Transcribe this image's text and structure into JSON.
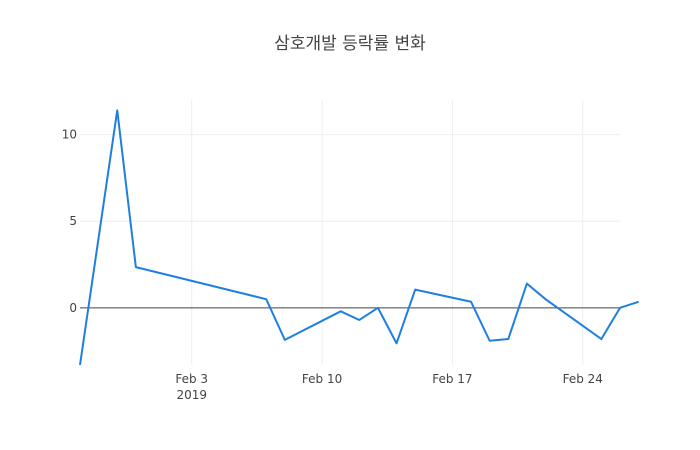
{
  "chart_data": {
    "type": "line",
    "title": "삼호개발 등락률 변화",
    "xlabel": "",
    "ylabel": "",
    "x_tick_labels": [
      {
        "date": "2019-02-03",
        "label": "Feb 3",
        "sublabel": "2019"
      },
      {
        "date": "2019-02-10",
        "label": "Feb 10",
        "sublabel": ""
      },
      {
        "date": "2019-02-17",
        "label": "Feb 17",
        "sublabel": ""
      },
      {
        "date": "2019-02-24",
        "label": "Feb 24",
        "sublabel": ""
      }
    ],
    "y_ticks": [
      0,
      5,
      10
    ],
    "xlim": [
      "2019-01-28",
      "2019-02-26"
    ],
    "ylim": [
      -3.3,
      12
    ],
    "grid": true,
    "zeroline": true,
    "legend": "none",
    "line_color": "#1f7fe0",
    "series": [
      {
        "x": [
          "2019-01-28",
          "2019-01-30",
          "2019-01-31",
          "2019-02-07",
          "2019-02-08",
          "2019-02-11",
          "2019-02-12",
          "2019-02-13",
          "2019-02-14",
          "2019-02-15",
          "2019-02-18",
          "2019-02-19",
          "2019-02-20",
          "2019-02-21",
          "2019-02-22",
          "2019-02-25",
          "2019-02-26",
          "2019-02-27"
        ],
        "values": [
          -3.3,
          11.4,
          2.35,
          0.5,
          -1.85,
          -0.2,
          -0.7,
          0.0,
          -2.05,
          1.05,
          0.35,
          -1.9,
          -1.8,
          1.4,
          0.5,
          -1.8,
          0.0,
          0.35
        ]
      }
    ]
  }
}
